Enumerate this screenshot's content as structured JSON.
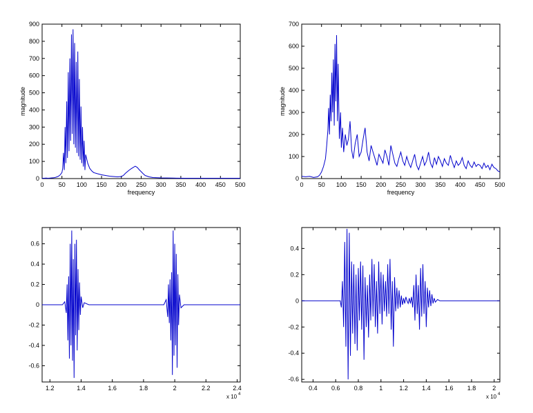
{
  "figure": {
    "background": "#ffffff",
    "line_color": "#0000cc"
  },
  "chart_data": [
    {
      "type": "line",
      "xlabel": "frequency",
      "ylabel": "magnitude",
      "xlim": [
        0,
        500
      ],
      "ylim": [
        0,
        900
      ],
      "xticks": [
        0,
        50,
        100,
        150,
        200,
        250,
        300,
        350,
        400,
        450,
        500
      ],
      "yticks": [
        0,
        100,
        200,
        300,
        400,
        500,
        600,
        700,
        800,
        900
      ],
      "xtick_labels": [
        "0",
        "50",
        "100",
        "150",
        "200",
        "250",
        "300",
        "350",
        "400",
        "450",
        "500"
      ],
      "ytick_labels": [
        "0",
        "100",
        "200",
        "300",
        "400",
        "500",
        "600",
        "700",
        "800",
        "900"
      ],
      "x_exponent": "",
      "grid": false,
      "series": [
        {
          "color": "#0000cc",
          "x": [
            0,
            5,
            10,
            15,
            20,
            25,
            30,
            35,
            40,
            45,
            50,
            52,
            54,
            56,
            58,
            60,
            62,
            64,
            66,
            68,
            70,
            72,
            74,
            76,
            78,
            80,
            82,
            84,
            86,
            88,
            90,
            92,
            94,
            96,
            98,
            100,
            102,
            104,
            106,
            108,
            110,
            115,
            120,
            125,
            130,
            140,
            150,
            160,
            170,
            180,
            190,
            200,
            205,
            210,
            215,
            220,
            225,
            230,
            235,
            240,
            245,
            250,
            255,
            260,
            270,
            280,
            300,
            330,
            360,
            400,
            450,
            500
          ],
          "y": [
            2,
            2,
            3,
            2,
            3,
            4,
            5,
            8,
            12,
            20,
            35,
            60,
            150,
            50,
            300,
            90,
            450,
            120,
            620,
            160,
            700,
            220,
            840,
            260,
            870,
            200,
            790,
            180,
            680,
            150,
            740,
            130,
            580,
            110,
            420,
            90,
            300,
            70,
            220,
            50,
            140,
            90,
            60,
            45,
            35,
            28,
            22,
            18,
            14,
            12,
            10,
            12,
            18,
            30,
            40,
            50,
            58,
            65,
            72,
            65,
            52,
            40,
            28,
            18,
            10,
            6,
            4,
            3,
            2,
            2,
            2,
            2
          ]
        }
      ]
    },
    {
      "type": "line",
      "xlabel": "frequency",
      "ylabel": "magnitude",
      "xlim": [
        0,
        500
      ],
      "ylim": [
        0,
        700
      ],
      "xticks": [
        0,
        50,
        100,
        150,
        200,
        250,
        300,
        350,
        400,
        450,
        500
      ],
      "yticks": [
        0,
        100,
        200,
        300,
        400,
        500,
        600,
        700
      ],
      "xtick_labels": [
        "0",
        "50",
        "100",
        "150",
        "200",
        "250",
        "300",
        "350",
        "400",
        "450",
        "500"
      ],
      "ytick_labels": [
        "0",
        "100",
        "200",
        "300",
        "400",
        "500",
        "600",
        "700"
      ],
      "x_exponent": "",
      "grid": false,
      "series": [
        {
          "color": "#0000cc",
          "x": [
            0,
            10,
            20,
            30,
            40,
            45,
            50,
            55,
            60,
            63,
            66,
            68,
            70,
            72,
            74,
            76,
            78,
            80,
            82,
            84,
            86,
            88,
            90,
            92,
            95,
            98,
            100,
            103,
            106,
            110,
            114,
            118,
            122,
            126,
            130,
            135,
            140,
            145,
            150,
            155,
            160,
            165,
            170,
            175,
            180,
            185,
            190,
            195,
            200,
            205,
            210,
            215,
            220,
            225,
            230,
            235,
            240,
            245,
            250,
            255,
            260,
            265,
            270,
            275,
            280,
            285,
            290,
            295,
            300,
            305,
            310,
            315,
            320,
            325,
            330,
            335,
            340,
            345,
            350,
            355,
            360,
            365,
            370,
            375,
            380,
            385,
            390,
            395,
            400,
            405,
            410,
            415,
            420,
            425,
            430,
            435,
            440,
            445,
            450,
            455,
            460,
            465,
            470,
            475,
            480,
            485,
            490,
            495,
            500
          ],
          "y": [
            10,
            8,
            10,
            5,
            8,
            15,
            30,
            55,
            90,
            150,
            220,
            320,
            200,
            380,
            260,
            480,
            300,
            540,
            240,
            610,
            350,
            650,
            260,
            520,
            180,
            300,
            140,
            230,
            120,
            200,
            150,
            180,
            260,
            130,
            90,
            160,
            200,
            100,
            120,
            180,
            230,
            120,
            80,
            150,
            120,
            90,
            60,
            110,
            90,
            70,
            130,
            100,
            60,
            150,
            110,
            70,
            55,
            90,
            120,
            80,
            60,
            100,
            70,
            50,
            80,
            110,
            60,
            40,
            70,
            100,
            60,
            80,
            120,
            70,
            50,
            95,
            65,
            100,
            80,
            55,
            90,
            70,
            60,
            105,
            75,
            50,
            80,
            60,
            70,
            95,
            60,
            45,
            80,
            60,
            50,
            75,
            55,
            65,
            60,
            45,
            70,
            50,
            60,
            40,
            65,
            50,
            45,
            35,
            30
          ]
        }
      ]
    },
    {
      "type": "line",
      "xlabel": "",
      "ylabel": "",
      "xlim": [
        1.15,
        2.42
      ],
      "ylim": [
        -0.76,
        0.76
      ],
      "xticks": [
        1.2,
        1.4,
        1.6,
        1.8,
        2.0,
        2.2,
        2.4
      ],
      "yticks": [
        -0.6,
        -0.4,
        -0.2,
        0,
        0.2,
        0.4,
        0.6
      ],
      "xtick_labels": [
        "1.2",
        "1.4",
        "1.6",
        "1.8",
        "2",
        "2.2",
        "2.4"
      ],
      "ytick_labels": [
        "-0.6",
        "-0.4",
        "-0.2",
        "0",
        "0.2",
        "0.4",
        "0.6"
      ],
      "x_exponent": "x 10",
      "x_exponent_power": "4",
      "grid": false,
      "series": [
        {
          "color": "#0000cc",
          "x": [
            1.15,
            1.28,
            1.295,
            1.305,
            1.31,
            1.315,
            1.32,
            1.325,
            1.33,
            1.335,
            1.34,
            1.345,
            1.35,
            1.355,
            1.36,
            1.365,
            1.37,
            1.375,
            1.38,
            1.385,
            1.39,
            1.395,
            1.4,
            1.41,
            1.42,
            1.45,
            1.93,
            1.945,
            1.955,
            1.96,
            1.965,
            1.97,
            1.975,
            1.98,
            1.985,
            1.99,
            1.995,
            2.0,
            2.005,
            2.01,
            2.015,
            2.02,
            2.025,
            2.03,
            2.04,
            2.06,
            2.42
          ],
          "y": [
            0,
            0,
            0.03,
            -0.08,
            0.2,
            -0.35,
            0.28,
            -0.53,
            0.6,
            -0.4,
            0.73,
            -0.55,
            0.45,
            -0.72,
            0.6,
            -0.3,
            0.64,
            -0.45,
            0.35,
            -0.25,
            0.22,
            -0.1,
            0.08,
            -0.03,
            0.02,
            0,
            0,
            0.05,
            -0.12,
            0.2,
            -0.18,
            0.25,
            -0.35,
            0.32,
            -0.69,
            0.73,
            -0.5,
            0.6,
            -0.4,
            0.5,
            -0.62,
            0.3,
            -0.2,
            0.1,
            -0.03,
            0,
            0
          ]
        }
      ]
    },
    {
      "type": "line",
      "xlabel": "",
      "ylabel": "",
      "xlim": [
        0.3,
        2.05
      ],
      "ylim": [
        -0.62,
        0.56
      ],
      "xticks": [
        0.4,
        0.6,
        0.8,
        1.0,
        1.2,
        1.4,
        1.6,
        1.8,
        2.0
      ],
      "yticks": [
        -0.6,
        -0.4,
        -0.2,
        0,
        0.2,
        0.4
      ],
      "xtick_labels": [
        "0.4",
        "0.6",
        "0.8",
        "1",
        "1.2",
        "1.4",
        "1.6",
        "1.8",
        "2"
      ],
      "ytick_labels": [
        "-0.6",
        "-0.4",
        "-0.2",
        "0",
        "0.2",
        "0.4"
      ],
      "x_exponent": "x 10",
      "x_exponent_power": "4",
      "grid": false,
      "series": [
        {
          "color": "#0000cc",
          "x": [
            0.3,
            0.64,
            0.65,
            0.66,
            0.67,
            0.68,
            0.69,
            0.7,
            0.71,
            0.72,
            0.73,
            0.74,
            0.75,
            0.76,
            0.77,
            0.78,
            0.79,
            0.8,
            0.81,
            0.82,
            0.83,
            0.84,
            0.85,
            0.86,
            0.87,
            0.88,
            0.89,
            0.9,
            0.91,
            0.92,
            0.93,
            0.94,
            0.95,
            0.96,
            0.97,
            0.98,
            0.99,
            1.0,
            1.01,
            1.02,
            1.03,
            1.04,
            1.05,
            1.06,
            1.07,
            1.08,
            1.09,
            1.1,
            1.11,
            1.12,
            1.13,
            1.14,
            1.15,
            1.16,
            1.17,
            1.18,
            1.19,
            1.2,
            1.21,
            1.22,
            1.23,
            1.24,
            1.25,
            1.26,
            1.27,
            1.28,
            1.29,
            1.3,
            1.31,
            1.32,
            1.33,
            1.34,
            1.35,
            1.36,
            1.37,
            1.38,
            1.39,
            1.4,
            1.41,
            1.42,
            1.43,
            1.44,
            1.45,
            1.46,
            1.47,
            1.48,
            1.5,
            1.52,
            1.55,
            1.58,
            1.62,
            1.65,
            2.05
          ],
          "y": [
            0,
            0,
            -0.05,
            0.15,
            -0.2,
            0.45,
            -0.35,
            0.55,
            -0.6,
            0.52,
            -0.42,
            0.3,
            -0.25,
            0.28,
            -0.33,
            0.2,
            -0.38,
            0.25,
            -0.15,
            0.3,
            -0.22,
            0.27,
            -0.45,
            0.18,
            -0.2,
            0.12,
            -0.28,
            0.2,
            -0.15,
            0.32,
            -0.12,
            0.28,
            -0.2,
            0.15,
            -0.25,
            0.3,
            -0.1,
            0.22,
            -0.18,
            0.2,
            -0.08,
            0.15,
            -0.12,
            0.28,
            -0.1,
            0.32,
            -0.22,
            0.15,
            -0.35,
            0.18,
            -0.08,
            0.1,
            -0.06,
            0.08,
            -0.05,
            0.04,
            -0.03,
            0.02,
            -0.02,
            0.03,
            0,
            -0.02,
            0.02,
            -0.02,
            0.03,
            -0.05,
            0.12,
            -0.15,
            0.2,
            -0.1,
            0.12,
            -0.22,
            0.25,
            -0.12,
            0.28,
            -0.1,
            0.15,
            -0.2,
            0.1,
            -0.05,
            0.08,
            -0.04,
            0.05,
            -0.02,
            0.02,
            -0.01,
            0.01,
            0,
            0,
            0,
            0,
            0,
            0
          ]
        }
      ]
    }
  ]
}
